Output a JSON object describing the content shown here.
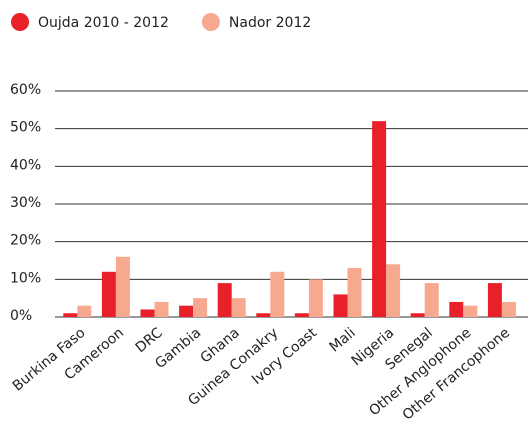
{
  "chart_data": {
    "type": "bar",
    "categories": [
      "Burkina Faso",
      "Cameroon",
      "DRC",
      "Gambia",
      "Ghana",
      "Guinea Conakry",
      "Ivory Coast",
      "Mali",
      "Nigeria",
      "Senegal",
      "Other Anglophone",
      "Other Francophone"
    ],
    "series": [
      {
        "name": "Oujda 2010 - 2012",
        "color": "#e8202a",
        "values": [
          1,
          12,
          2,
          3,
          9,
          1,
          1,
          6,
          52,
          1,
          4,
          9
        ]
      },
      {
        "name": "Nador 2012",
        "color": "#f7a98f",
        "values": [
          3,
          16,
          4,
          5,
          5,
          12,
          10,
          13,
          14,
          9,
          3,
          4
        ]
      }
    ],
    "ylim": [
      0,
      60
    ],
    "yticks": [
      {
        "value": 0,
        "label": "0%"
      },
      {
        "value": 10,
        "label": "10%"
      },
      {
        "value": 20,
        "label": "20%"
      },
      {
        "value": 30,
        "label": "30%"
      },
      {
        "value": 40,
        "label": "40%"
      },
      {
        "value": 50,
        "label": "50%"
      },
      {
        "value": 60,
        "label": "60%"
      }
    ],
    "grid": true,
    "legend": "top-left"
  }
}
